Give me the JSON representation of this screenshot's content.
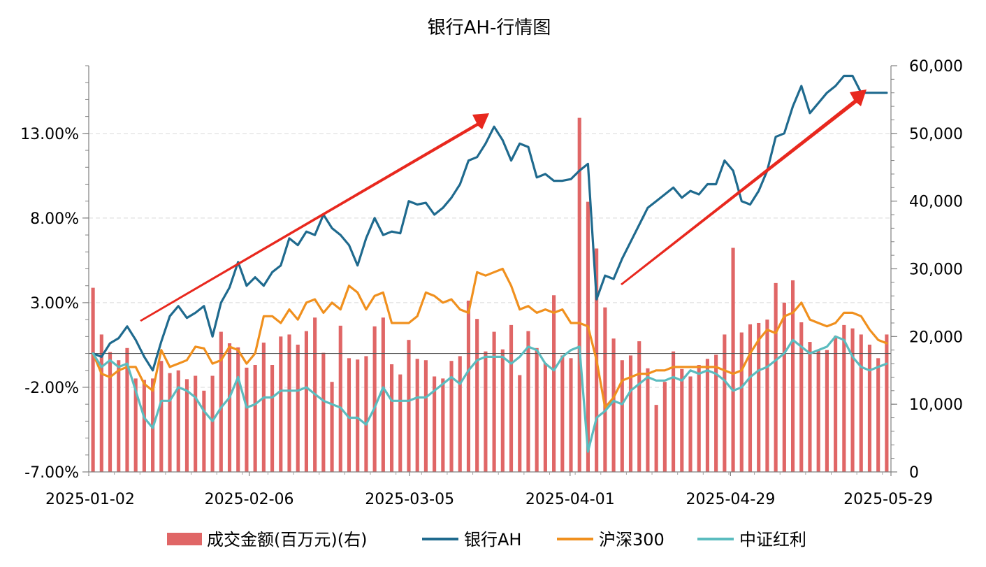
{
  "chart_data": {
    "type": "bar+line",
    "title": "银行AH-行情图",
    "x_tick_labels": [
      "2025-01-02",
      "2025-02-06",
      "2025-03-05",
      "2025-04-01",
      "2025-04-29",
      "2025-05-29"
    ],
    "y_left": {
      "ylim": [
        -7,
        17
      ],
      "tick_labels": [
        "-7.00%",
        "-2.00%",
        "3.00%",
        "8.00%",
        "13.00%"
      ],
      "tick_values": [
        -7,
        -2,
        3,
        8,
        13
      ]
    },
    "y_right": {
      "ylim": [
        0,
        60000
      ],
      "tick_labels": [
        "0",
        "10,000",
        "20,000",
        "30,000",
        "40,000",
        "50,000",
        "60,000"
      ],
      "tick_values": [
        0,
        10000,
        20000,
        30000,
        40000,
        50000,
        60000
      ]
    },
    "bar_series": {
      "name": "成交金额(百万元)(右)",
      "color": "#e06666",
      "values": [
        27200,
        20300,
        17700,
        16500,
        18300,
        13800,
        13600,
        13800,
        16400,
        14600,
        15000,
        13700,
        14200,
        12000,
        14200,
        20700,
        19000,
        18400,
        15400,
        15800,
        19100,
        15800,
        20000,
        20300,
        18800,
        20800,
        22800,
        17600,
        13300,
        21600,
        16800,
        16600,
        17100,
        21500,
        22800,
        15900,
        14400,
        19500,
        16700,
        16500,
        14100,
        13800,
        16400,
        17100,
        25300,
        22600,
        17800,
        20700,
        18100,
        21700,
        14300,
        20800,
        18300,
        16100,
        26100,
        17200,
        16800,
        52300,
        39900,
        33000,
        24300,
        19700,
        16500,
        17200,
        19300,
        15300,
        9900,
        13300,
        17800,
        15200,
        14100,
        15800,
        16700,
        17300,
        20300,
        33100,
        20600,
        21800,
        22000,
        22500,
        27900,
        25000,
        28300,
        22100,
        19200,
        18000,
        18000,
        20100,
        21700,
        21200,
        20300,
        18800,
        16800,
        20300
      ]
    },
    "series": [
      {
        "name": "银行AH",
        "color": "#1f6a8e",
        "values": [
          0.0,
          -0.2,
          0.6,
          0.9,
          1.6,
          0.8,
          -0.2,
          -1.0,
          0.7,
          2.2,
          2.8,
          2.1,
          2.4,
          2.8,
          1.0,
          3.0,
          3.9,
          5.4,
          4.0,
          4.5,
          4.0,
          4.8,
          5.2,
          6.8,
          6.4,
          7.2,
          7.0,
          8.2,
          7.4,
          7.0,
          6.4,
          5.2,
          6.8,
          8.0,
          7.0,
          7.2,
          7.1,
          9.0,
          8.8,
          8.9,
          8.2,
          8.6,
          9.2,
          10.0,
          11.4,
          11.6,
          12.4,
          13.4,
          12.6,
          11.4,
          12.4,
          12.2,
          10.4,
          10.6,
          10.2,
          10.2,
          10.3,
          10.8,
          11.2,
          3.2,
          4.6,
          4.4,
          5.6,
          6.6,
          7.6,
          8.6,
          9.0,
          9.4,
          9.8,
          9.2,
          9.6,
          9.4,
          10.0,
          10.0,
          11.4,
          10.8,
          9.0,
          8.8,
          9.6,
          10.8,
          12.8,
          13.0,
          14.6,
          15.8,
          14.2,
          14.8,
          15.4,
          15.8,
          16.4,
          16.4,
          15.4,
          15.4,
          15.4,
          15.4
        ]
      },
      {
        "name": "沪深300",
        "color": "#f0901e",
        "values": [
          0.0,
          -1.2,
          -1.4,
          -1.0,
          -0.8,
          -0.8,
          -1.8,
          -2.2,
          0.2,
          -0.8,
          -0.6,
          -0.4,
          0.4,
          0.3,
          -0.6,
          -0.4,
          0.4,
          0.2,
          -0.6,
          0.0,
          2.2,
          2.2,
          1.8,
          2.6,
          2.0,
          3.0,
          3.2,
          2.4,
          3.0,
          2.6,
          4.0,
          3.6,
          2.6,
          3.4,
          3.6,
          1.8,
          1.8,
          1.8,
          2.2,
          3.6,
          3.4,
          3.0,
          3.2,
          2.6,
          2.4,
          4.8,
          4.6,
          4.8,
          5.0,
          4.0,
          2.6,
          2.8,
          2.4,
          2.6,
          2.4,
          2.6,
          1.8,
          1.8,
          1.6,
          -0.4,
          -3.2,
          -2.6,
          -1.6,
          -1.4,
          -1.2,
          -1.2,
          -1.0,
          -1.0,
          -0.8,
          -0.8,
          -0.8,
          -0.8,
          -0.8,
          -0.8,
          -1.0,
          -1.2,
          -1.0,
          0.0,
          0.8,
          1.4,
          1.2,
          2.2,
          2.4,
          3.0,
          2.0,
          1.8,
          1.6,
          1.8,
          2.4,
          2.4,
          2.2,
          1.4,
          0.8,
          0.6
        ]
      },
      {
        "name": "中证红利",
        "color": "#5bbcbf",
        "values": [
          0.0,
          -0.8,
          -0.4,
          -0.8,
          -0.6,
          -2.2,
          -3.8,
          -4.4,
          -2.8,
          -2.8,
          -2.0,
          -2.2,
          -2.6,
          -3.4,
          -4.0,
          -3.2,
          -2.6,
          -1.4,
          -3.2,
          -3.0,
          -2.6,
          -2.6,
          -2.2,
          -2.2,
          -2.2,
          -2.0,
          -2.4,
          -2.8,
          -3.0,
          -3.2,
          -3.8,
          -3.8,
          -4.2,
          -3.2,
          -2.0,
          -2.8,
          -2.8,
          -2.8,
          -2.6,
          -2.6,
          -2.2,
          -1.8,
          -1.4,
          -1.8,
          -1.0,
          -0.4,
          -0.2,
          -0.2,
          -0.2,
          -0.6,
          -0.2,
          0.4,
          0.2,
          -0.6,
          -1.0,
          -0.2,
          0.2,
          0.4,
          -5.8,
          -3.8,
          -3.4,
          -2.8,
          -3.0,
          -2.2,
          -1.8,
          -1.4,
          -1.6,
          -1.6,
          -1.4,
          -1.6,
          -1.0,
          -1.2,
          -1.0,
          -1.2,
          -1.6,
          -2.2,
          -2.0,
          -1.4,
          -1.0,
          -0.8,
          -0.4,
          0.0,
          0.8,
          0.4,
          0.0,
          0.2,
          0.4,
          1.0,
          0.8,
          -0.2,
          -0.8,
          -1.0,
          -0.8,
          -0.6
        ]
      }
    ]
  },
  "legend": {
    "bar_label": "成交金额(百万元)(右)",
    "line1_label": "银行AH",
    "line2_label": "沪深300",
    "line3_label": "中证红利"
  }
}
